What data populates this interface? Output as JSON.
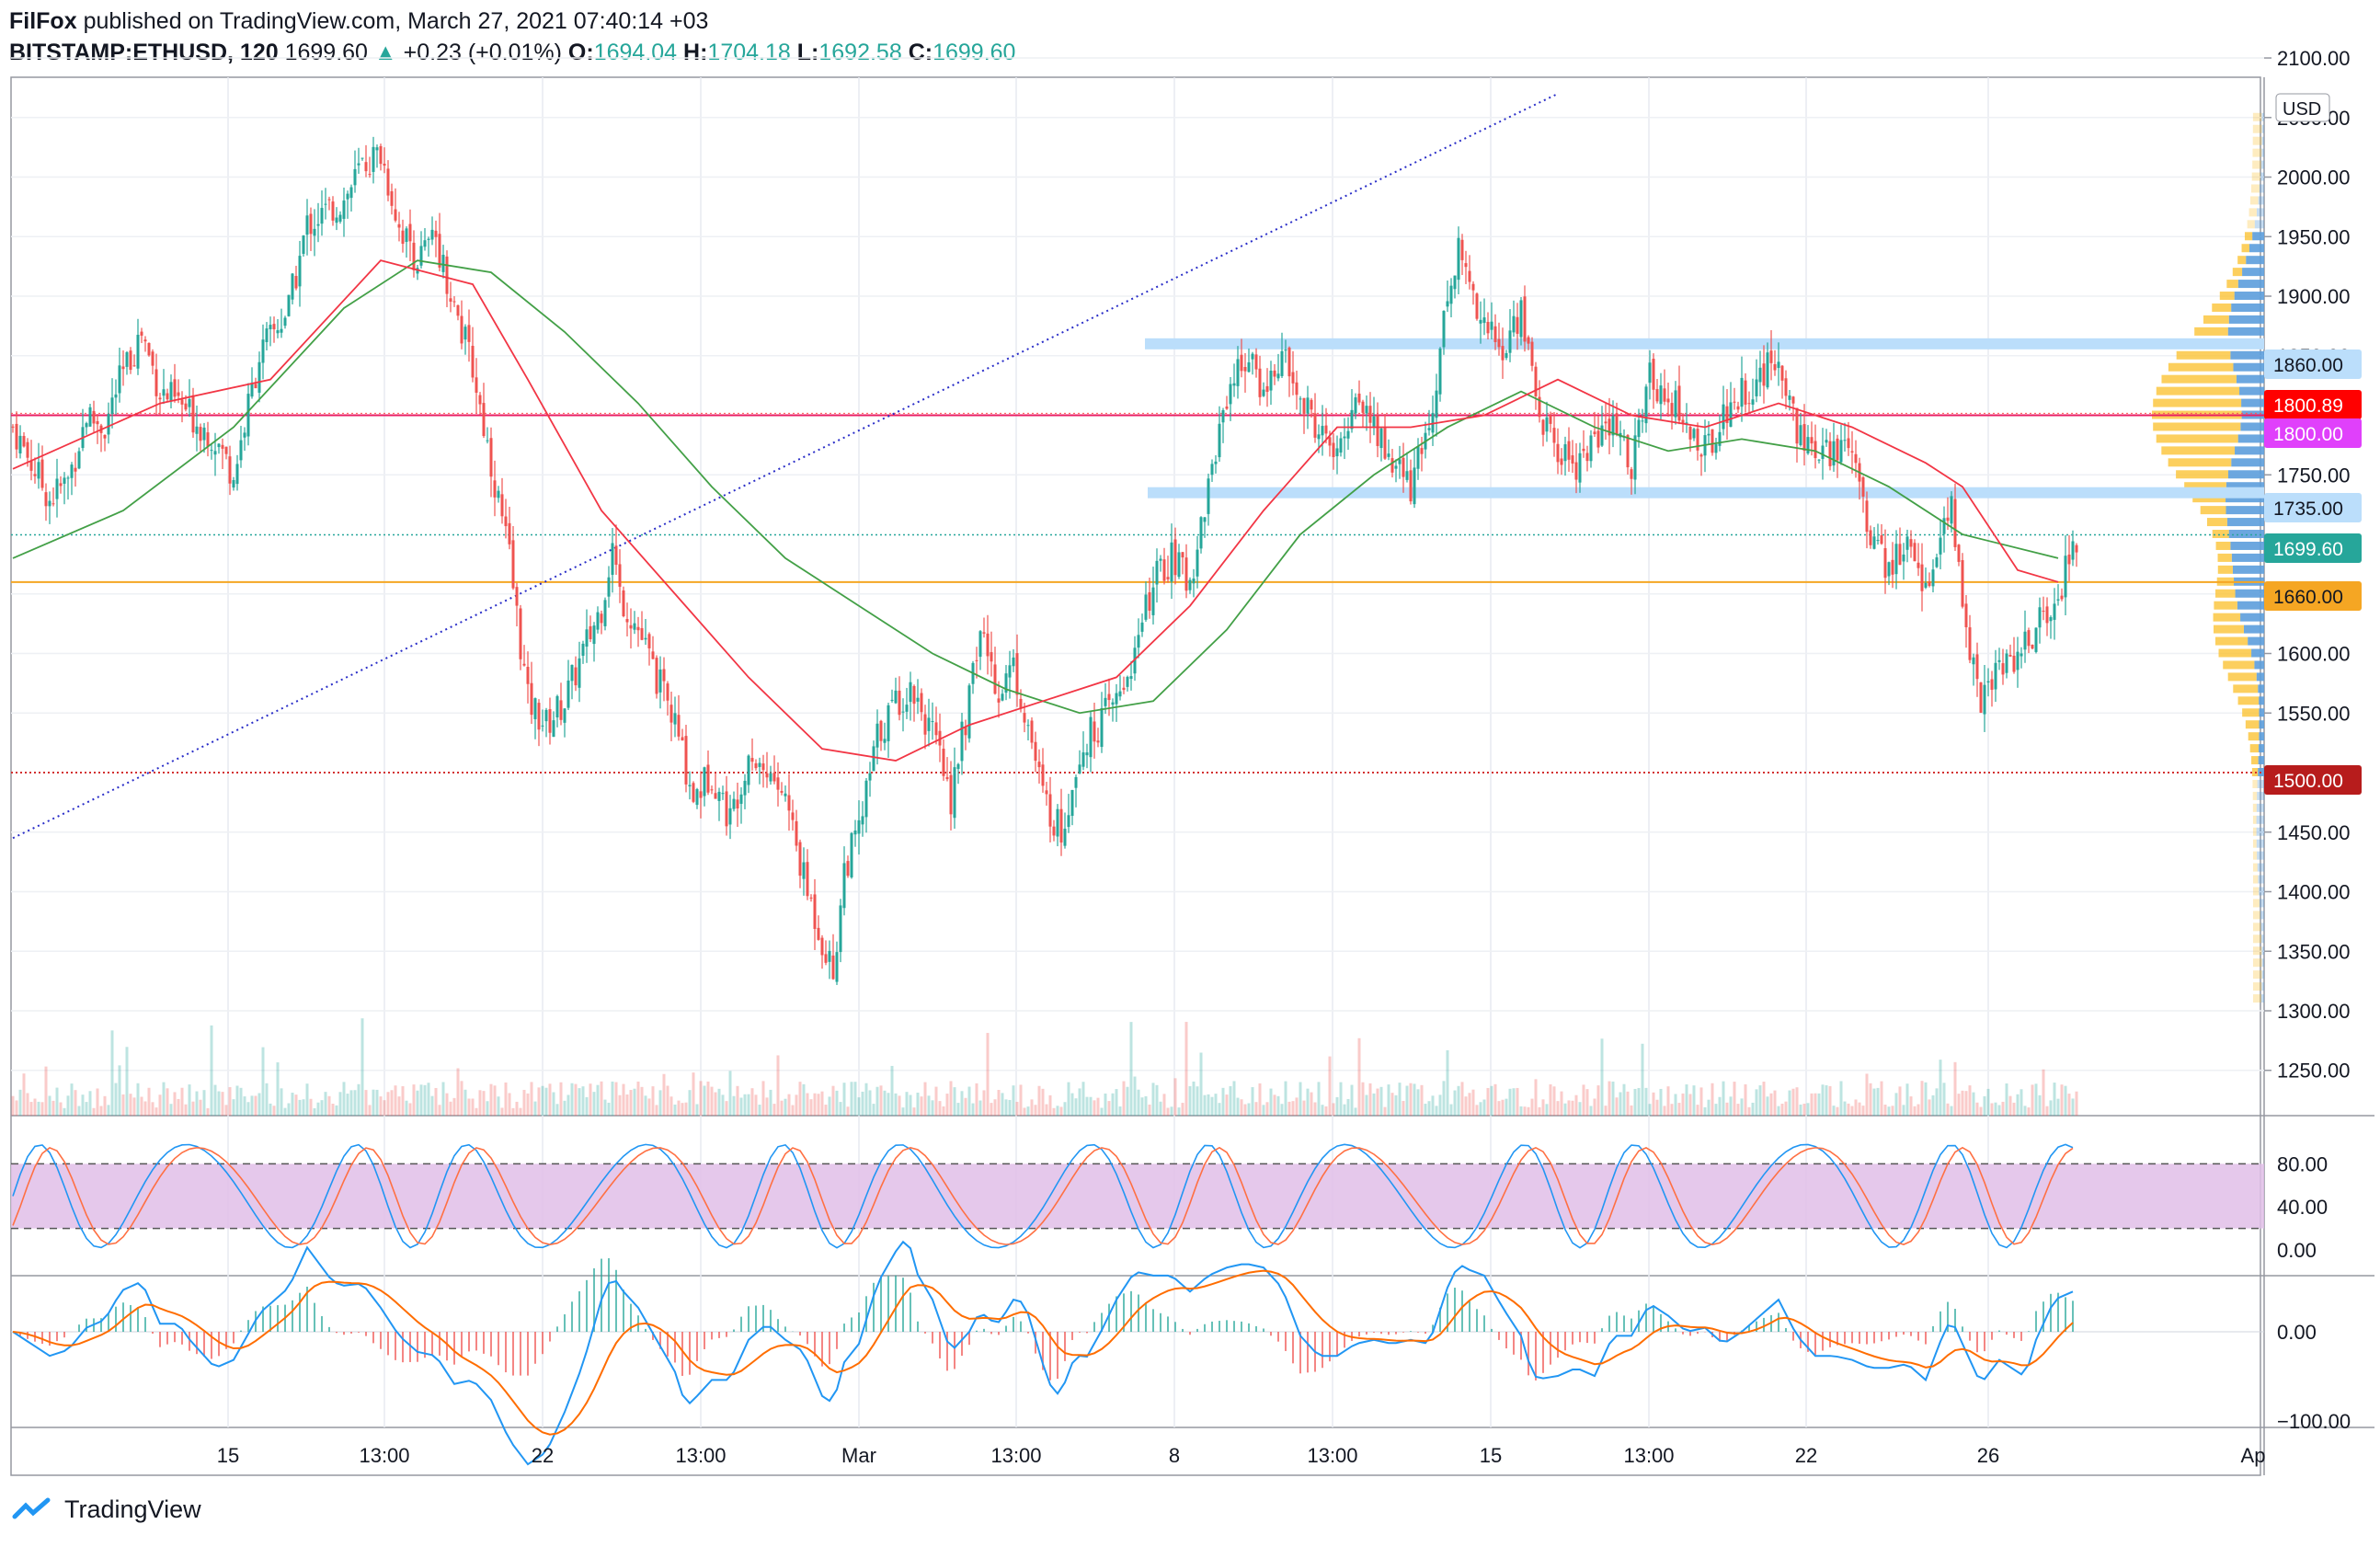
{
  "header": {
    "author": "FilFox",
    "published": "published on TradingView.com, March 27, 2021 07:40:14 +03",
    "symbol": "BITSTAMP:ETHUSD, 120",
    "last": "1699.60",
    "arrow": "▲",
    "change": "+0.23 (+0.01%)",
    "o_label": "O:",
    "o": "1694.04",
    "h_label": "H:",
    "h": "1704.18",
    "l_label": "L:",
    "l": "1692.58",
    "c_label": "C:",
    "c": "1699.60"
  },
  "footer": {
    "brand": "TradingView",
    "icon": "tradingview-logo-icon"
  },
  "currency_label": "USD",
  "colors": {
    "up": "#26a69a",
    "down": "#ef5350",
    "ma_red": "#f23645",
    "ma_green": "#43a047",
    "rsi_fill": "#e1bee7",
    "stoch_k": "#2196f3",
    "stoch_d": "#ff7043",
    "macd": "#2196f3",
    "signal": "#ff6d00",
    "trendline": "#2a2ec8",
    "level_1800": "#e91e63",
    "level_1660": "#f5a623",
    "level_1500": "#d32f2f",
    "zone": "#bbdefb",
    "vp_up": "#5c9ddb",
    "vp_down": "#fbc02d"
  },
  "x_axis": {
    "labels": [
      "15",
      "13:00",
      "22",
      "13:00",
      "Mar",
      "13:00",
      "8",
      "13:00",
      "15",
      "13:00",
      "22",
      "26",
      "Ap"
    ]
  },
  "price_axis": {
    "ticks": [
      "2100.00",
      "2050.00",
      "2000.00",
      "1950.00",
      "1900.00",
      "1850.00",
      "1750.00",
      "1650.00",
      "1600.00",
      "1550.00",
      "1450.00",
      "1400.00",
      "1350.00",
      "1300.00",
      "1250.00"
    ]
  },
  "price_labels": [
    {
      "text": "1860.00",
      "color": "#bbdefb",
      "text_color": "#131722"
    },
    {
      "text": "1800.89",
      "color": "#ff0000",
      "text_color": "#ffffff"
    },
    {
      "text": "1800.00",
      "color": "#e040fb",
      "text_color": "#ffffff"
    },
    {
      "text": "1735.00",
      "color": "#bbdefb",
      "text_color": "#131722"
    },
    {
      "text": "1699.60",
      "color": "#26a69a",
      "text_color": "#ffffff"
    },
    {
      "text": "1660.00",
      "color": "#f5a623",
      "text_color": "#131722"
    },
    {
      "text": "1500.00",
      "color": "#b71c1c",
      "text_color": "#ffffff"
    }
  ],
  "stoch_axis": {
    "ticks": [
      "80.00",
      "40.00",
      "0.00"
    ]
  },
  "macd_axis": {
    "ticks": [
      "0.00",
      "−100.00"
    ]
  },
  "chart_data": {
    "type": "candlestick",
    "symbol": "BITSTAMP:ETHUSD",
    "timeframe": "120",
    "y_range": [
      1210,
      2110
    ],
    "levels": [
      {
        "price": 1860,
        "style": "zone"
      },
      {
        "price": 1800,
        "style": "line"
      },
      {
        "price": 1735,
        "style": "zone"
      },
      {
        "price": 1699.6,
        "style": "dotted"
      },
      {
        "price": 1660,
        "style": "line"
      },
      {
        "price": 1500,
        "style": "dotted"
      }
    ],
    "close_path": [
      [
        0,
        1790
      ],
      [
        5,
        1760
      ],
      [
        10,
        1730
      ],
      [
        15,
        1745
      ],
      [
        20,
        1800
      ],
      [
        25,
        1790
      ],
      [
        28,
        1820
      ],
      [
        35,
        1870
      ],
      [
        40,
        1820
      ],
      [
        45,
        1810
      ],
      [
        55,
        1780
      ],
      [
        60,
        1750
      ],
      [
        67,
        1850
      ],
      [
        75,
        1890
      ],
      [
        80,
        1960
      ],
      [
        90,
        1980
      ],
      [
        95,
        2010
      ],
      [
        100,
        2020
      ],
      [
        105,
        1960
      ],
      [
        110,
        1930
      ],
      [
        115,
        1950
      ],
      [
        120,
        1890
      ],
      [
        125,
        1840
      ],
      [
        130,
        1760
      ],
      [
        135,
        1680
      ],
      [
        140,
        1560
      ],
      [
        145,
        1540
      ],
      [
        150,
        1560
      ],
      [
        160,
        1640
      ],
      [
        163,
        1690
      ],
      [
        165,
        1650
      ],
      [
        170,
        1620
      ],
      [
        175,
        1580
      ],
      [
        180,
        1540
      ],
      [
        185,
        1480
      ],
      [
        190,
        1500
      ],
      [
        195,
        1460
      ],
      [
        200,
        1520
      ],
      [
        205,
        1500
      ],
      [
        210,
        1480
      ],
      [
        215,
        1410
      ],
      [
        220,
        1360
      ],
      [
        223,
        1330
      ],
      [
        226,
        1420
      ],
      [
        230,
        1450
      ],
      [
        235,
        1530
      ],
      [
        240,
        1560
      ],
      [
        245,
        1570
      ],
      [
        250,
        1530
      ],
      [
        255,
        1480
      ],
      [
        260,
        1560
      ],
      [
        263,
        1620
      ],
      [
        268,
        1570
      ],
      [
        272,
        1590
      ],
      [
        276,
        1540
      ],
      [
        280,
        1480
      ],
      [
        285,
        1450
      ],
      [
        290,
        1520
      ],
      [
        295,
        1540
      ],
      [
        300,
        1560
      ],
      [
        305,
        1600
      ],
      [
        310,
        1660
      ],
      [
        315,
        1680
      ],
      [
        320,
        1660
      ],
      [
        325,
        1740
      ],
      [
        330,
        1820
      ],
      [
        335,
        1850
      ],
      [
        340,
        1820
      ],
      [
        345,
        1850
      ],
      [
        350,
        1810
      ],
      [
        355,
        1790
      ],
      [
        360,
        1760
      ],
      [
        365,
        1820
      ],
      [
        370,
        1790
      ],
      [
        375,
        1760
      ],
      [
        380,
        1740
      ],
      [
        385,
        1790
      ],
      [
        390,
        1900
      ],
      [
        393,
        1940
      ],
      [
        396,
        1910
      ],
      [
        400,
        1880
      ],
      [
        405,
        1850
      ],
      [
        410,
        1890
      ],
      [
        415,
        1800
      ],
      [
        420,
        1770
      ],
      [
        425,
        1760
      ],
      [
        430,
        1780
      ],
      [
        435,
        1790
      ],
      [
        440,
        1760
      ],
      [
        445,
        1830
      ],
      [
        450,
        1820
      ],
      [
        455,
        1790
      ],
      [
        460,
        1770
      ],
      [
        465,
        1800
      ],
      [
        470,
        1820
      ],
      [
        475,
        1830
      ],
      [
        480,
        1850
      ],
      [
        485,
        1790
      ],
      [
        490,
        1760
      ],
      [
        495,
        1770
      ],
      [
        500,
        1780
      ],
      [
        505,
        1700
      ],
      [
        510,
        1670
      ],
      [
        515,
        1690
      ],
      [
        520,
        1660
      ],
      [
        525,
        1700
      ],
      [
        527,
        1720
      ],
      [
        530,
        1640
      ],
      [
        535,
        1560
      ],
      [
        540,
        1590
      ],
      [
        545,
        1600
      ],
      [
        550,
        1620
      ],
      [
        555,
        1640
      ],
      [
        560,
        1690
      ],
      [
        562,
        1700
      ]
    ],
    "ma_fast": [
      [
        0,
        1755
      ],
      [
        40,
        1810
      ],
      [
        70,
        1830
      ],
      [
        100,
        1930
      ],
      [
        125,
        1910
      ],
      [
        140,
        1830
      ],
      [
        160,
        1720
      ],
      [
        180,
        1650
      ],
      [
        200,
        1580
      ],
      [
        220,
        1520
      ],
      [
        240,
        1510
      ],
      [
        260,
        1540
      ],
      [
        280,
        1560
      ],
      [
        300,
        1580
      ],
      [
        320,
        1640
      ],
      [
        340,
        1720
      ],
      [
        360,
        1790
      ],
      [
        380,
        1790
      ],
      [
        400,
        1800
      ],
      [
        420,
        1830
      ],
      [
        440,
        1800
      ],
      [
        460,
        1790
      ],
      [
        480,
        1810
      ],
      [
        500,
        1790
      ],
      [
        520,
        1760
      ],
      [
        530,
        1740
      ],
      [
        545,
        1670
      ],
      [
        556,
        1660
      ]
    ],
    "ma_slow": [
      [
        0,
        1680
      ],
      [
        30,
        1720
      ],
      [
        60,
        1790
      ],
      [
        90,
        1890
      ],
      [
        110,
        1930
      ],
      [
        130,
        1920
      ],
      [
        150,
        1870
      ],
      [
        170,
        1810
      ],
      [
        190,
        1740
      ],
      [
        210,
        1680
      ],
      [
        230,
        1640
      ],
      [
        250,
        1600
      ],
      [
        270,
        1570
      ],
      [
        290,
        1550
      ],
      [
        310,
        1560
      ],
      [
        330,
        1620
      ],
      [
        350,
        1700
      ],
      [
        370,
        1750
      ],
      [
        390,
        1790
      ],
      [
        410,
        1820
      ],
      [
        430,
        1790
      ],
      [
        450,
        1770
      ],
      [
        470,
        1780
      ],
      [
        490,
        1770
      ],
      [
        510,
        1740
      ],
      [
        530,
        1700
      ],
      [
        556,
        1680
      ]
    ],
    "trendline": {
      "from": [
        0,
        1445
      ],
      "to": [
        420,
        2070
      ]
    },
    "indicators": {
      "stoch_rsi": {
        "range": [
          0,
          100
        ],
        "bands": [
          20,
          80
        ]
      },
      "macd": {
        "range": [
          -105,
          50
        ],
        "zero": 0
      }
    }
  }
}
